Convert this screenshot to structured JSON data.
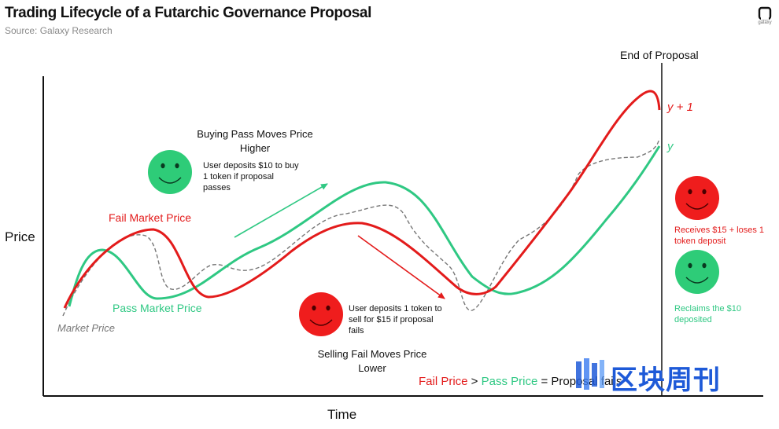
{
  "header": {
    "title": "Trading Lifecycle of a Futarchic Governance Proposal",
    "source": "Source: Galaxy Research",
    "logo_text": "galaxy"
  },
  "axes": {
    "y_label": "Price",
    "x_label": "Time"
  },
  "labels": {
    "end_of_proposal": "End of Proposal",
    "y_plus_1": "y + 1",
    "y": "y",
    "fail_market_price": "Fail Market Price",
    "pass_market_price": "Pass Market Price",
    "market_price": "Market Price",
    "buying_pass_line1": "Buying Pass Moves Price",
    "buying_pass_line2": "Higher",
    "buyer_note_line1": "User deposits $10 to buy",
    "buyer_note_line2": "1 token if proposal",
    "buyer_note_line3": "passes",
    "seller_note_line1": "User deposits 1 token to",
    "seller_note_line2": "sell for $15 if proposal",
    "seller_note_line3": "fails",
    "selling_fail_line1": "Selling Fail Moves Price",
    "selling_fail_line2": "Lower",
    "fail_outcome_line1": "Receives $15 + loses 1",
    "fail_outcome_line2": "token deposit",
    "pass_outcome_line1": "Reclaims the $10",
    "pass_outcome_line2": "deposited",
    "formula_fail": "Fail Price",
    "formula_gt": " > ",
    "formula_pass": "Pass Price",
    "formula_eq": " = Proposal fails"
  },
  "watermark": {
    "text": "区块周刊"
  },
  "colors": {
    "fail": "#e31b1b",
    "pass": "#2fc883",
    "market": "#777777",
    "face_red": "#ef1d1d",
    "face_green": "#2ecc78",
    "watermark_blue": "#1e5ad8"
  }
}
